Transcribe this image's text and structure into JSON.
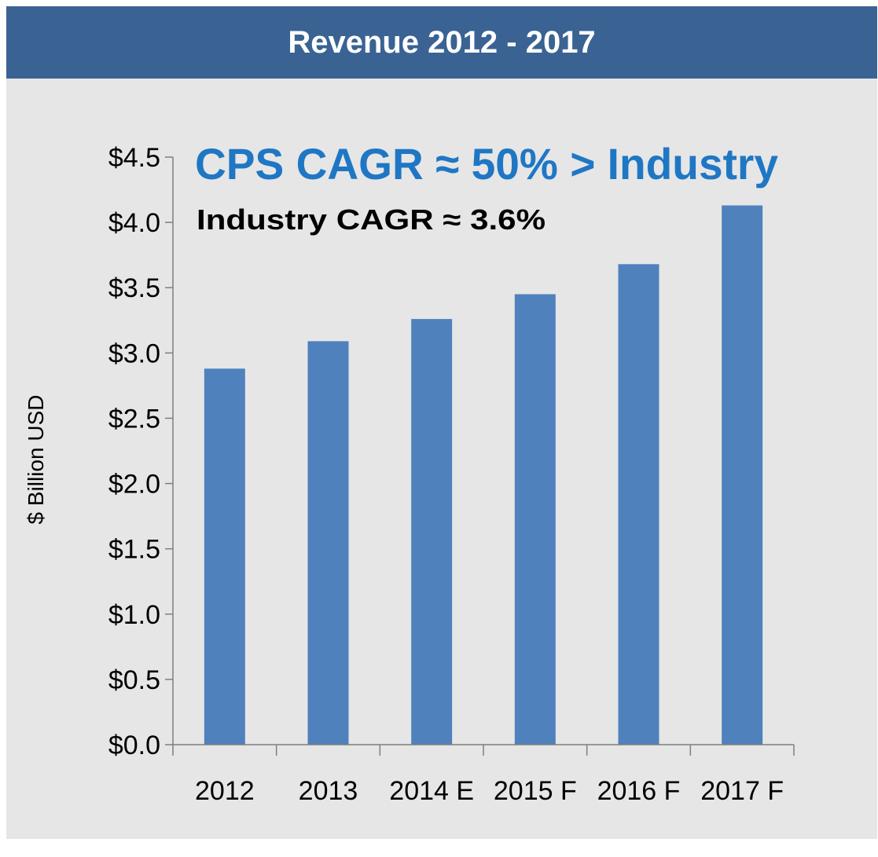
{
  "header": {
    "title": "Revenue 2012 - 2017"
  },
  "colors": {
    "header_bg": "#3a6394",
    "bar": "#4f81bd",
    "annotation_main": "#1f77c4",
    "panel_bg": "#e6e6e6"
  },
  "chart_data": {
    "type": "bar",
    "title": "Revenue 2012 - 2017",
    "ylabel": "$ Billion USD",
    "xlabel": "",
    "categories": [
      "2012",
      "2013",
      "2014 E",
      "2015 F",
      "2016 F",
      "2017 F"
    ],
    "values": [
      2.88,
      3.09,
      3.26,
      3.45,
      3.68,
      4.13
    ],
    "ylim": [
      0,
      4.5
    ],
    "yticks": [
      0.0,
      0.5,
      1.0,
      1.5,
      2.0,
      2.5,
      3.0,
      3.5,
      4.0,
      4.5
    ],
    "ytick_labels": [
      "$0.0",
      "$0.5",
      "$1.0",
      "$1.5",
      "$2.0",
      "$2.5",
      "$3.0",
      "$3.5",
      "$4.0",
      "$4.5"
    ],
    "grid": false,
    "legend": "none",
    "annotations": [
      "CPS CAGR ≈ 50% > Industry",
      "Industry CAGR ≈ 3.6%"
    ]
  }
}
